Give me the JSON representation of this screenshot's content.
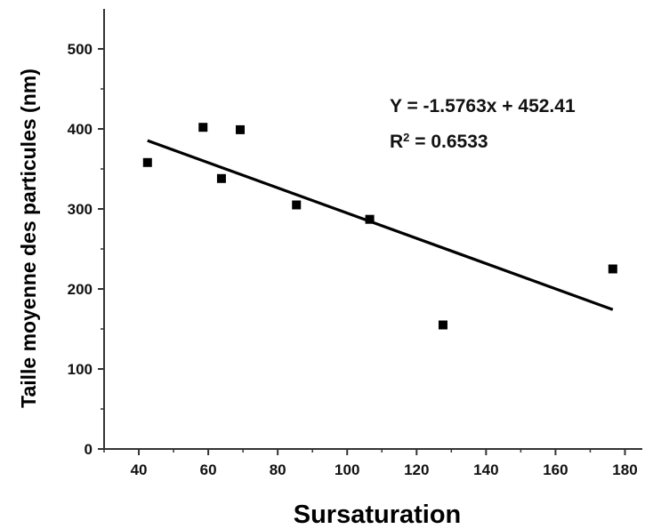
{
  "chart_data": {
    "type": "scatter",
    "title": "",
    "xlabel": "Sursaturation",
    "ylabel": "Taille moyenne des particules (nm)",
    "xlim": [
      30,
      185
    ],
    "ylim": [
      0,
      550
    ],
    "x_ticks": [
      40,
      60,
      80,
      100,
      120,
      140,
      160,
      180
    ],
    "y_ticks": [
      0,
      100,
      200,
      300,
      400,
      500
    ],
    "grid": false,
    "series": [
      {
        "points": [
          {
            "x": 42.5,
            "y": 358
          },
          {
            "x": 58.5,
            "y": 402
          },
          {
            "x": 63.8,
            "y": 338
          },
          {
            "x": 69.2,
            "y": 399
          },
          {
            "x": 85.4,
            "y": 305
          },
          {
            "x": 106.5,
            "y": 287
          },
          {
            "x": 127.6,
            "y": 155
          },
          {
            "x": 176.5,
            "y": 225
          }
        ]
      }
    ],
    "fit": {
      "slope": -1.5763,
      "intercept": 452.41,
      "x_range": [
        42.5,
        176.5
      ],
      "equation_label": "Y = -1.5763x + 452.41",
      "r2_label_prefix": "R",
      "r2_label_exponent": "2",
      "r2_label_value": " = 0.6533"
    },
    "colors": {
      "marker": "#000000",
      "line": "#000000",
      "axis": "#333333"
    }
  }
}
